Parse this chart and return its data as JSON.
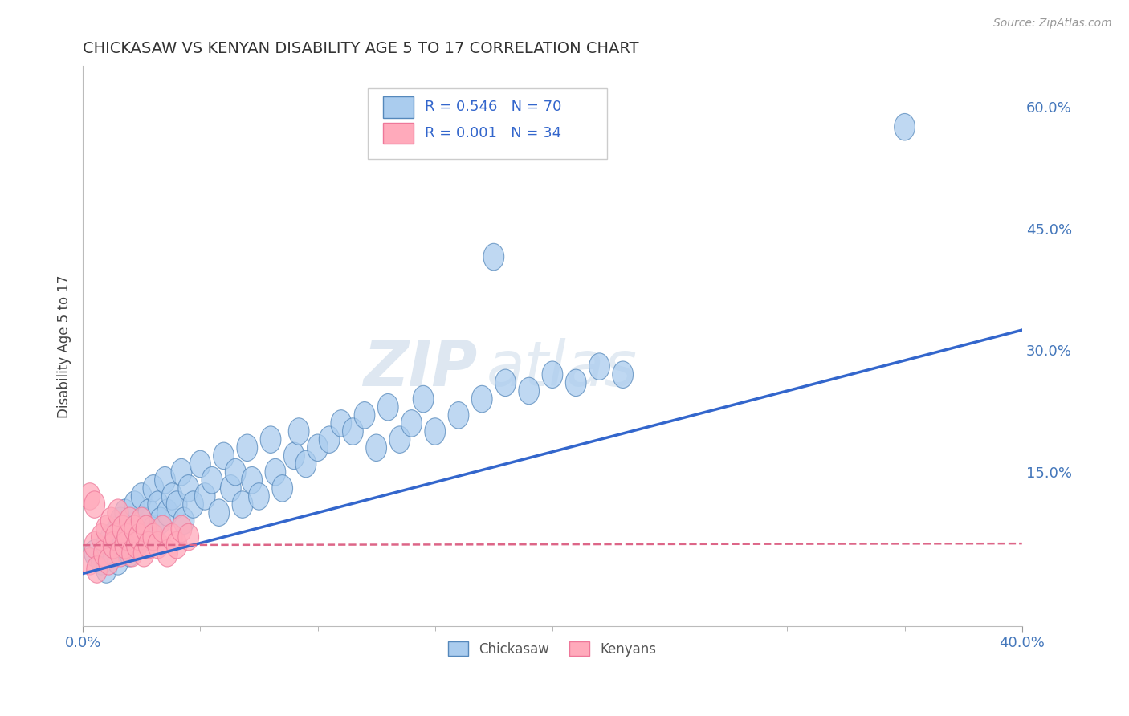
{
  "title": "CHICKASAW VS KENYAN DISABILITY AGE 5 TO 17 CORRELATION CHART",
  "source_text": "Source: ZipAtlas.com",
  "ylabel": "Disability Age 5 to 17",
  "xlim": [
    0.0,
    0.4
  ],
  "ylim": [
    -0.04,
    0.65
  ],
  "ytick_labels": [
    "60.0%",
    "45.0%",
    "30.0%",
    "15.0%"
  ],
  "ytick_positions": [
    0.6,
    0.45,
    0.3,
    0.15
  ],
  "xtick_labels": [
    "0.0%",
    "40.0%"
  ],
  "xtick_positions": [
    0.0,
    0.4
  ],
  "background_color": "#ffffff",
  "grid_color": "#d0d0d0",
  "legend_r1": "R = 0.546",
  "legend_n1": "N = 70",
  "legend_r2": "R = 0.001",
  "legend_n2": "N = 34",
  "chickasaw_color": "#aaccee",
  "kenyan_color": "#ffaabb",
  "chickasaw_edge": "#5588bb",
  "kenyan_edge": "#ee7799",
  "trend_blue": "#3366cc",
  "trend_pink": "#dd6688",
  "chickasaw_scatter_x": [
    0.005,
    0.008,
    0.01,
    0.01,
    0.012,
    0.013,
    0.015,
    0.015,
    0.016,
    0.017,
    0.018,
    0.02,
    0.02,
    0.022,
    0.022,
    0.023,
    0.025,
    0.026,
    0.027,
    0.028,
    0.03,
    0.03,
    0.032,
    0.033,
    0.035,
    0.036,
    0.038,
    0.04,
    0.042,
    0.043,
    0.045,
    0.047,
    0.05,
    0.052,
    0.055,
    0.058,
    0.06,
    0.063,
    0.065,
    0.068,
    0.07,
    0.072,
    0.075,
    0.08,
    0.082,
    0.085,
    0.09,
    0.092,
    0.095,
    0.1,
    0.105,
    0.11,
    0.115,
    0.12,
    0.125,
    0.13,
    0.135,
    0.14,
    0.145,
    0.15,
    0.16,
    0.17,
    0.18,
    0.19,
    0.2,
    0.21,
    0.22,
    0.23,
    0.175,
    0.35
  ],
  "chickasaw_scatter_y": [
    0.05,
    0.04,
    0.06,
    0.03,
    0.07,
    0.05,
    0.08,
    0.04,
    0.09,
    0.06,
    0.1,
    0.07,
    0.05,
    0.11,
    0.08,
    0.06,
    0.12,
    0.09,
    0.07,
    0.1,
    0.13,
    0.08,
    0.11,
    0.09,
    0.14,
    0.1,
    0.12,
    0.11,
    0.15,
    0.09,
    0.13,
    0.11,
    0.16,
    0.12,
    0.14,
    0.1,
    0.17,
    0.13,
    0.15,
    0.11,
    0.18,
    0.14,
    0.12,
    0.19,
    0.15,
    0.13,
    0.17,
    0.2,
    0.16,
    0.18,
    0.19,
    0.21,
    0.2,
    0.22,
    0.18,
    0.23,
    0.19,
    0.21,
    0.24,
    0.2,
    0.22,
    0.24,
    0.26,
    0.25,
    0.27,
    0.26,
    0.28,
    0.27,
    0.415,
    0.575
  ],
  "kenyan_scatter_x": [
    0.003,
    0.005,
    0.006,
    0.008,
    0.009,
    0.01,
    0.011,
    0.012,
    0.013,
    0.014,
    0.015,
    0.016,
    0.017,
    0.018,
    0.019,
    0.02,
    0.021,
    0.022,
    0.023,
    0.024,
    0.025,
    0.026,
    0.027,
    0.028,
    0.03,
    0.032,
    0.034,
    0.036,
    0.038,
    0.04,
    0.042,
    0.045,
    0.003,
    0.005
  ],
  "kenyan_scatter_y": [
    0.04,
    0.06,
    0.03,
    0.07,
    0.05,
    0.08,
    0.04,
    0.09,
    0.06,
    0.07,
    0.1,
    0.05,
    0.08,
    0.06,
    0.07,
    0.09,
    0.05,
    0.08,
    0.06,
    0.07,
    0.09,
    0.05,
    0.08,
    0.06,
    0.07,
    0.06,
    0.08,
    0.05,
    0.07,
    0.06,
    0.08,
    0.07,
    0.12,
    0.11
  ],
  "blue_trend_x": [
    0.0,
    0.4
  ],
  "blue_trend_y": [
    0.025,
    0.325
  ],
  "pink_trend_x": [
    0.0,
    0.4
  ],
  "pink_trend_y": [
    0.06,
    0.062
  ]
}
